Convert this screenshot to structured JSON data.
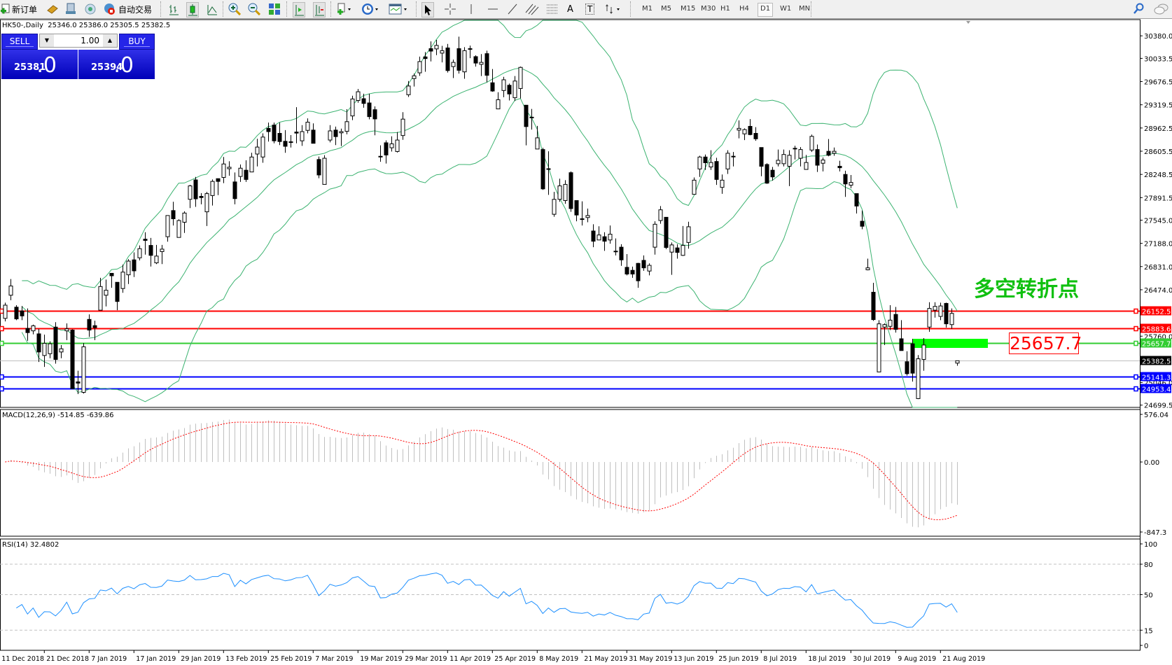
{
  "toolbar": {
    "new_order_label": "新订单",
    "auto_trading_label": "自动交易",
    "timeframes": [
      "M1",
      "M5",
      "M15",
      "M30",
      "H1",
      "H4",
      "D1",
      "W1",
      "MN"
    ],
    "active_timeframe": "D1",
    "text_tool": "A",
    "label_tool": "T"
  },
  "chart": {
    "title": "HK50-,Daily  25346.0 25386.0 25305.5 25382.5",
    "symbol": "HK50-",
    "period": "Daily",
    "ohlc": {
      "open": "25346.0",
      "high": "25386.0",
      "low": "25305.5",
      "close": "25382.5"
    }
  },
  "one_click": {
    "sell_label": "SELL",
    "buy_label": "BUY",
    "lot": "1.00",
    "sell_price_main": "25381",
    "sell_price_frac": ".0",
    "buy_price_main": "25394",
    "buy_price_frac": ".0"
  },
  "annotation": {
    "text": "多空转折点",
    "price_box": "25657.7",
    "color": "#10c010"
  },
  "price_axis": {
    "ticks": [
      "30380.0",
      "30033.5",
      "29676.5",
      "29319.5",
      "28962.5",
      "28605.5",
      "28248.5",
      "27891.5",
      "27545.0",
      "27188.0",
      "26831.0",
      "26474.0",
      "25760.0",
      "25046.0",
      "24699.5"
    ],
    "range": [
      24699.5,
      30380.0
    ]
  },
  "horizontal_lines": [
    {
      "price": "26152.5",
      "color": "#ff0000"
    },
    {
      "price": "25883.6",
      "color": "#ff0000"
    },
    {
      "price": "25657.7",
      "color": "#32cd32"
    },
    {
      "price": "25382.5",
      "color": "#000000",
      "line_color": "#c0c0c0"
    },
    {
      "price": "25141.3",
      "color": "#0000ff"
    },
    {
      "price": "24953.4",
      "color": "#0000ff"
    }
  ],
  "macd": {
    "title": "MACD(12,26,9) -514.85 -639.86",
    "max_label": "576.04",
    "zero_label": "0.00",
    "min_label": "-847.3",
    "range": [
      -847.3,
      576.04
    ],
    "hist_color": "#c0c0c0",
    "signal_color": "#ff0000"
  },
  "rsi": {
    "title": "RSI(14) 32.4802",
    "levels": [
      "100",
      "80",
      "50",
      "15",
      "0"
    ],
    "dashed_levels": [
      80,
      50,
      15
    ],
    "color": "#1e90ff"
  },
  "bollinger": {
    "period": 20,
    "deviation": 2,
    "color": "#3cb371"
  },
  "date_labels": [
    "11 Dec 2018",
    "21 Dec 2018",
    "7 Jan 2019",
    "17 Jan 2019",
    "29 Jan 2019",
    "13 Feb 2019",
    "25 Feb 2019",
    "7 Mar 2019",
    "19 Mar 2019",
    "29 Mar 2019",
    "11 Apr 2019",
    "25 Apr 2019",
    "8 May 2019",
    "21 May 2019",
    "31 May 2019",
    "13 Jun 2019",
    "25 Jun 2019",
    "8 Jul 2019",
    "18 Jul 2019",
    "30 Jul 2019",
    "9 Aug 2019",
    "21 Aug 2019"
  ],
  "chart_data": {
    "type": "candlestick",
    "ohlc_order": [
      "open",
      "high",
      "low",
      "close"
    ],
    "bars": [
      [
        26034,
        26275,
        25988,
        26237
      ],
      [
        26390,
        26639,
        26313,
        26532
      ],
      [
        26206,
        26237,
        26007,
        26026
      ],
      [
        26148,
        26225,
        26007,
        26072
      ],
      [
        25880,
        26187,
        25689,
        25815
      ],
      [
        25842,
        25938,
        25788,
        25919
      ],
      [
        25796,
        25873,
        25363,
        25517
      ],
      [
        25463,
        25785,
        25287,
        25650
      ],
      [
        25490,
        25681,
        25421,
        25643
      ],
      [
        25900,
        25976,
        25337,
        25402
      ],
      [
        25517,
        25623,
        25421,
        25566
      ],
      [
        25842,
        25957,
        25700,
        25873
      ],
      [
        25854,
        25865,
        24953,
        24953
      ],
      [
        25057,
        25229,
        24869,
        25038
      ],
      [
        24896,
        25655,
        24877,
        25597
      ],
      [
        26018,
        26095,
        25750,
        25854
      ],
      [
        25922,
        25999,
        25700,
        25892
      ],
      [
        26160,
        26658,
        26160,
        26524
      ],
      [
        26390,
        26631,
        26218,
        26467
      ],
      [
        26727,
        26727,
        26505,
        26689
      ],
      [
        26589,
        26589,
        26160,
        26294
      ],
      [
        26493,
        26861,
        26428,
        26746
      ],
      [
        26704,
        26945,
        26562,
        26915
      ],
      [
        26934,
        27049,
        26670,
        26765
      ],
      [
        26965,
        27156,
        26926,
        27106
      ],
      [
        27252,
        27359,
        27014,
        27233
      ],
      [
        27156,
        27271,
        26831,
        27003
      ],
      [
        26888,
        27164,
        26869,
        26992
      ],
      [
        27061,
        27164,
        26869,
        27099
      ],
      [
        27290,
        27616,
        27214,
        27616
      ],
      [
        27692,
        27827,
        27463,
        27566
      ],
      [
        27279,
        27558,
        27279,
        27539
      ],
      [
        27513,
        27681,
        27348,
        27654
      ],
      [
        27865,
        28087,
        27731,
        28072
      ],
      [
        28164,
        28210,
        27750,
        27873
      ],
      [
        27911,
        27961,
        27788,
        27892
      ],
      [
        27673,
        27980,
        27455,
        27953
      ],
      [
        27923,
        28171,
        27769,
        28141
      ],
      [
        28183,
        28183,
        27930,
        28141
      ],
      [
        28202,
        28516,
        28114,
        28409
      ],
      [
        28336,
        28451,
        28229,
        28359
      ],
      [
        28133,
        28279,
        27788,
        27876
      ],
      [
        28217,
        28401,
        28133,
        28344
      ],
      [
        28313,
        28466,
        28133,
        28171
      ],
      [
        28286,
        28581,
        28286,
        28516
      ],
      [
        28562,
        28796,
        28371,
        28669
      ],
      [
        28516,
        28880,
        28428,
        28823
      ],
      [
        28957,
        29045,
        28754,
        28907
      ],
      [
        29007,
        29045,
        28727,
        28765
      ],
      [
        28880,
        29045,
        28700,
        28754
      ],
      [
        28758,
        28930,
        28581,
        28681
      ],
      [
        28750,
        28853,
        28662,
        28746
      ],
      [
        28900,
        29282,
        28727,
        28884
      ],
      [
        28765,
        29007,
        28688,
        28907
      ],
      [
        28926,
        29110,
        28880,
        29052
      ],
      [
        28930,
        29034,
        28727,
        28727
      ],
      [
        28478,
        28524,
        28190,
        28240
      ],
      [
        28095,
        28543,
        28095,
        28497
      ],
      [
        28777,
        29007,
        28742,
        28918
      ],
      [
        28930,
        28984,
        28700,
        28830
      ],
      [
        28888,
        28953,
        28685,
        28907
      ],
      [
        28911,
        29252,
        28865,
        29060
      ],
      [
        29148,
        29459,
        29083,
        29409
      ],
      [
        29386,
        29562,
        29351,
        29520
      ],
      [
        29413,
        29490,
        29275,
        29340
      ],
      [
        29348,
        29490,
        29095,
        29137
      ],
      [
        29244,
        29294,
        28850,
        29102
      ],
      [
        28527,
        28696,
        28443,
        28527
      ],
      [
        28735,
        28773,
        28416,
        28547
      ],
      [
        28658,
        28834,
        28600,
        28719
      ],
      [
        28601,
        28900,
        28585,
        28777
      ],
      [
        28846,
        29206,
        28780,
        29099
      ],
      [
        29474,
        29685,
        29440,
        29608
      ],
      [
        29723,
        29800,
        29600,
        29765
      ],
      [
        29811,
        30061,
        29765,
        29984
      ],
      [
        30056,
        30130,
        29827,
        30030
      ],
      [
        30183,
        30295,
        29987,
        30145
      ],
      [
        30179,
        30318,
        30084,
        30233
      ],
      [
        30114,
        30226,
        29972,
        30152
      ],
      [
        30194,
        30256,
        29815,
        29846
      ],
      [
        29907,
        30015,
        29731,
        29972
      ],
      [
        30183,
        30368,
        29800,
        29850
      ],
      [
        29826,
        30206,
        29720,
        30152
      ],
      [
        30183,
        30230,
        30036,
        30183
      ],
      [
        30060,
        30080,
        29907,
        29961
      ],
      [
        29941,
        30099,
        29762,
        29972
      ],
      [
        30106,
        30152,
        29666,
        29773
      ],
      [
        29658,
        29869,
        29520,
        29531
      ],
      [
        29256,
        29512,
        29256,
        29397
      ],
      [
        29539,
        29750,
        29436,
        29704
      ],
      [
        29620,
        29646,
        29386,
        29486
      ],
      [
        29428,
        29761,
        29378,
        29685
      ],
      [
        29570,
        29907,
        29417,
        29895
      ],
      [
        29313,
        29313,
        28696,
        28984
      ],
      [
        29129,
        29256,
        28938,
        29118
      ],
      [
        28639,
        28995,
        28639,
        28811
      ],
      [
        28631,
        28658,
        28011,
        28026
      ],
      [
        28336,
        28604,
        27934,
        28336
      ],
      [
        27635,
        27980,
        27597,
        27865
      ],
      [
        27865,
        28183,
        27827,
        28072
      ],
      [
        27846,
        28160,
        27796,
        28095
      ],
      [
        28275,
        28294,
        27673,
        27723
      ],
      [
        27846,
        27846,
        27528,
        27624
      ],
      [
        27566,
        27834,
        27463,
        27566
      ],
      [
        27585,
        27723,
        27513,
        27616
      ],
      [
        27378,
        27482,
        27129,
        27221
      ],
      [
        27240,
        27451,
        27240,
        27317
      ],
      [
        27290,
        27359,
        27072,
        27221
      ],
      [
        27240,
        27463,
        27183,
        27329
      ],
      [
        27068,
        27264,
        27003,
        27068
      ],
      [
        27129,
        27175,
        26842,
        26934
      ],
      [
        26819,
        27022,
        26696,
        26716
      ],
      [
        26773,
        26830,
        26658,
        26716
      ],
      [
        26880,
        26888,
        26505,
        26612
      ],
      [
        26926,
        27003,
        26765,
        26811
      ],
      [
        26762,
        26880,
        26696,
        26850
      ],
      [
        27129,
        27528,
        27014,
        27482
      ],
      [
        27539,
        27761,
        27489,
        27704
      ],
      [
        27589,
        27589,
        27099,
        27125
      ],
      [
        27053,
        27202,
        26704,
        27164
      ],
      [
        27118,
        27175,
        26953,
        27049
      ],
      [
        27003,
        27455,
        26995,
        27156
      ],
      [
        27202,
        27520,
        27106,
        27443
      ],
      [
        27942,
        28202,
        27942,
        28160
      ],
      [
        28332,
        28535,
        28210,
        28516
      ],
      [
        28516,
        28554,
        28317,
        28428
      ],
      [
        28363,
        28620,
        28317,
        28432
      ],
      [
        28447,
        28505,
        28087,
        28171
      ],
      [
        28049,
        28248,
        27950,
        28160
      ],
      [
        28332,
        28620,
        28256,
        28574
      ],
      [
        28528,
        28593,
        28371,
        28528
      ],
      [
        28930,
        29079,
        28804,
        28957
      ],
      [
        28872,
        28957,
        28777,
        28938
      ],
      [
        28988,
        29099,
        28850,
        28861
      ],
      [
        28880,
        28976,
        28765,
        28796
      ],
      [
        28662,
        28662,
        28221,
        28374
      ],
      [
        28401,
        28420,
        28103,
        28114
      ],
      [
        28313,
        28363,
        28152,
        28210
      ],
      [
        28413,
        28631,
        28371,
        28466
      ],
      [
        28413,
        28631,
        28371,
        28555
      ],
      [
        28374,
        28620,
        28068,
        28543
      ],
      [
        28650,
        28689,
        28478,
        28650
      ],
      [
        28497,
        28669,
        28371,
        28631
      ],
      [
        28325,
        28547,
        28325,
        28432
      ],
      [
        28623,
        28861,
        28593,
        28834
      ],
      [
        28631,
        28708,
        28286,
        28390
      ],
      [
        28420,
        28509,
        28294,
        28470
      ],
      [
        28604,
        28792,
        28528,
        28543
      ],
      [
        28574,
        28662,
        28535,
        28604
      ],
      [
        28374,
        28459,
        28294,
        28351
      ],
      [
        28248,
        28305,
        27903,
        28102
      ],
      [
        28083,
        28240,
        28037,
        28125
      ],
      [
        27953,
        27953,
        27647,
        27762
      ],
      [
        27528,
        27693,
        27405,
        27451
      ],
      [
        26781,
        26953,
        26773,
        26811
      ],
      [
        26436,
        26581,
        25995,
        26015
      ],
      [
        25210,
        26007,
        25210,
        25950
      ],
      [
        25900,
        25957,
        25624,
        25938
      ],
      [
        25911,
        26237,
        25854,
        26007
      ],
      [
        26095,
        26210,
        25815,
        25865
      ],
      [
        25720,
        26007,
        25539,
        25539
      ],
      [
        25367,
        25528,
        25153,
        25183
      ],
      [
        25643,
        25720,
        25061,
        25191
      ],
      [
        24800,
        25470,
        24792,
        25413
      ],
      [
        25402,
        25731,
        25229,
        25624
      ],
      [
        25900,
        26283,
        25827,
        26187
      ],
      [
        26160,
        26283,
        26045,
        26218
      ],
      [
        26064,
        26275,
        26007,
        26225
      ],
      [
        26264,
        26275,
        25892,
        25950
      ],
      [
        25938,
        26187,
        25873,
        26110
      ],
      [
        25346,
        25386,
        25305.5,
        25382.5
      ]
    ],
    "indicators": [
      "Bollinger Bands(20,2)",
      "MACD(12,26,9)",
      "RSI(14)"
    ]
  }
}
